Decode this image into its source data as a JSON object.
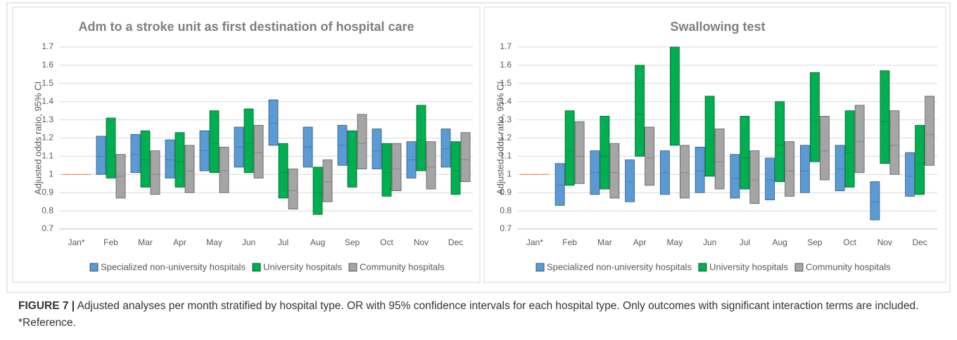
{
  "figure": {
    "label": "FIGURE 7 |",
    "caption": "Adjusted analyses per month stratified by hospital type. OR with 95% confidence intervals for each hospital type. Only outcomes with significant interaction terms are included. *Reference."
  },
  "chart_data": [
    {
      "type": "floating-bar",
      "title": "Adm to a stroke unit as first destination of hospital care",
      "y_label": "Adjusted odds ratio, 95% CI",
      "categories": [
        "Jan*",
        "Feb",
        "Mar",
        "Apr",
        "May",
        "Jun",
        "Jul",
        "Aug",
        "Sep",
        "Oct",
        "Nov",
        "Dec"
      ],
      "ylim": [
        0.7,
        1.7
      ],
      "yticks": [
        0.7,
        0.8,
        0.9,
        1,
        1.1,
        1.2,
        1.3,
        1.4,
        1.5,
        1.6,
        1.7
      ],
      "grid": true,
      "legend": "bottom",
      "series": [
        {
          "name": "Specialized non-university hospitals",
          "color": "#5b9bd5",
          "low": [
            1,
            1.0,
            1.01,
            0.98,
            1.02,
            1.04,
            1.16,
            1.04,
            1.05,
            1.03,
            0.98,
            1.04
          ],
          "high": [
            1,
            1.21,
            1.22,
            1.19,
            1.24,
            1.26,
            1.41,
            1.26,
            1.27,
            1.25,
            1.18,
            1.25
          ],
          "values": [
            1,
            1.1,
            1.11,
            1.08,
            1.13,
            1.15,
            1.28,
            1.15,
            1.16,
            1.13,
            1.08,
            1.14
          ]
        },
        {
          "name": "University hospitals",
          "color": "#00b050",
          "low": [
            1,
            0.98,
            0.93,
            0.93,
            1.01,
            1.01,
            0.87,
            0.78,
            0.93,
            0.88,
            1.02,
            0.89
          ],
          "high": [
            1,
            1.31,
            1.24,
            1.23,
            1.35,
            1.36,
            1.17,
            1.04,
            1.24,
            1.17,
            1.38,
            1.18
          ],
          "values": [
            1,
            1.13,
            1.08,
            1.07,
            1.17,
            1.17,
            1.01,
            0.9,
            1.07,
            1.01,
            1.19,
            1.02
          ]
        },
        {
          "name": "Community hospitals",
          "color": "#a5a5a5",
          "low": [
            1,
            0.87,
            0.89,
            0.9,
            0.9,
            0.98,
            0.81,
            0.85,
            1.03,
            0.91,
            0.92,
            0.96
          ],
          "high": [
            1,
            1.11,
            1.13,
            1.16,
            1.15,
            1.27,
            1.03,
            1.08,
            1.33,
            1.17,
            1.18,
            1.23
          ],
          "values": [
            1,
            0.99,
            1.0,
            1.02,
            1.02,
            1.12,
            0.91,
            0.96,
            1.17,
            1.03,
            1.04,
            1.08
          ]
        }
      ]
    },
    {
      "type": "floating-bar",
      "title": "Swallowing test",
      "y_label": "Adjusted odds ratio, 95% CI",
      "categories": [
        "Jan*",
        "Feb",
        "Mar",
        "Apr",
        "May",
        "Jun",
        "Jul",
        "Aug",
        "Sep",
        "Oct",
        "Nov",
        "Dec"
      ],
      "ylim": [
        0.7,
        1.7
      ],
      "yticks": [
        0.7,
        0.8,
        0.9,
        1,
        1.1,
        1.2,
        1.3,
        1.4,
        1.5,
        1.6,
        1.7
      ],
      "grid": true,
      "legend": "bottom",
      "series": [
        {
          "name": "Specialized non-university hospitals",
          "color": "#5b9bd5",
          "low": [
            1,
            0.83,
            0.89,
            0.85,
            0.89,
            0.9,
            0.87,
            0.86,
            0.9,
            0.91,
            0.75,
            0.88
          ],
          "high": [
            1,
            1.06,
            1.13,
            1.08,
            1.13,
            1.15,
            1.11,
            1.09,
            1.16,
            1.16,
            0.96,
            1.12
          ],
          "values": [
            1,
            0.94,
            1.01,
            0.96,
            1.01,
            1.02,
            0.98,
            0.97,
            1.02,
            1.03,
            0.85,
            0.99
          ]
        },
        {
          "name": "University hospitals",
          "color": "#00b050",
          "low": [
            1,
            0.94,
            0.92,
            1.1,
            1.16,
            0.99,
            0.92,
            0.96,
            1.07,
            0.93,
            1.06,
            0.89
          ],
          "high": [
            1,
            1.35,
            1.32,
            1.6,
            1.7,
            1.43,
            1.32,
            1.4,
            1.56,
            1.35,
            1.57,
            1.27
          ],
          "values": [
            1,
            1.13,
            1.1,
            1.33,
            1.4,
            1.19,
            1.09,
            1.16,
            1.29,
            1.12,
            1.29,
            1.06
          ]
        },
        {
          "name": "Community hospitals",
          "color": "#a5a5a5",
          "low": [
            1,
            0.95,
            0.87,
            0.94,
            0.87,
            0.92,
            0.84,
            0.88,
            0.97,
            1.01,
            1.0,
            1.05
          ],
          "high": [
            1,
            1.29,
            1.17,
            1.26,
            1.16,
            1.25,
            1.13,
            1.18,
            1.32,
            1.38,
            1.35,
            1.43
          ],
          "values": [
            1,
            1.1,
            1.01,
            1.09,
            1.01,
            1.07,
            0.97,
            1.02,
            1.13,
            1.18,
            1.16,
            1.22
          ]
        }
      ]
    }
  ]
}
